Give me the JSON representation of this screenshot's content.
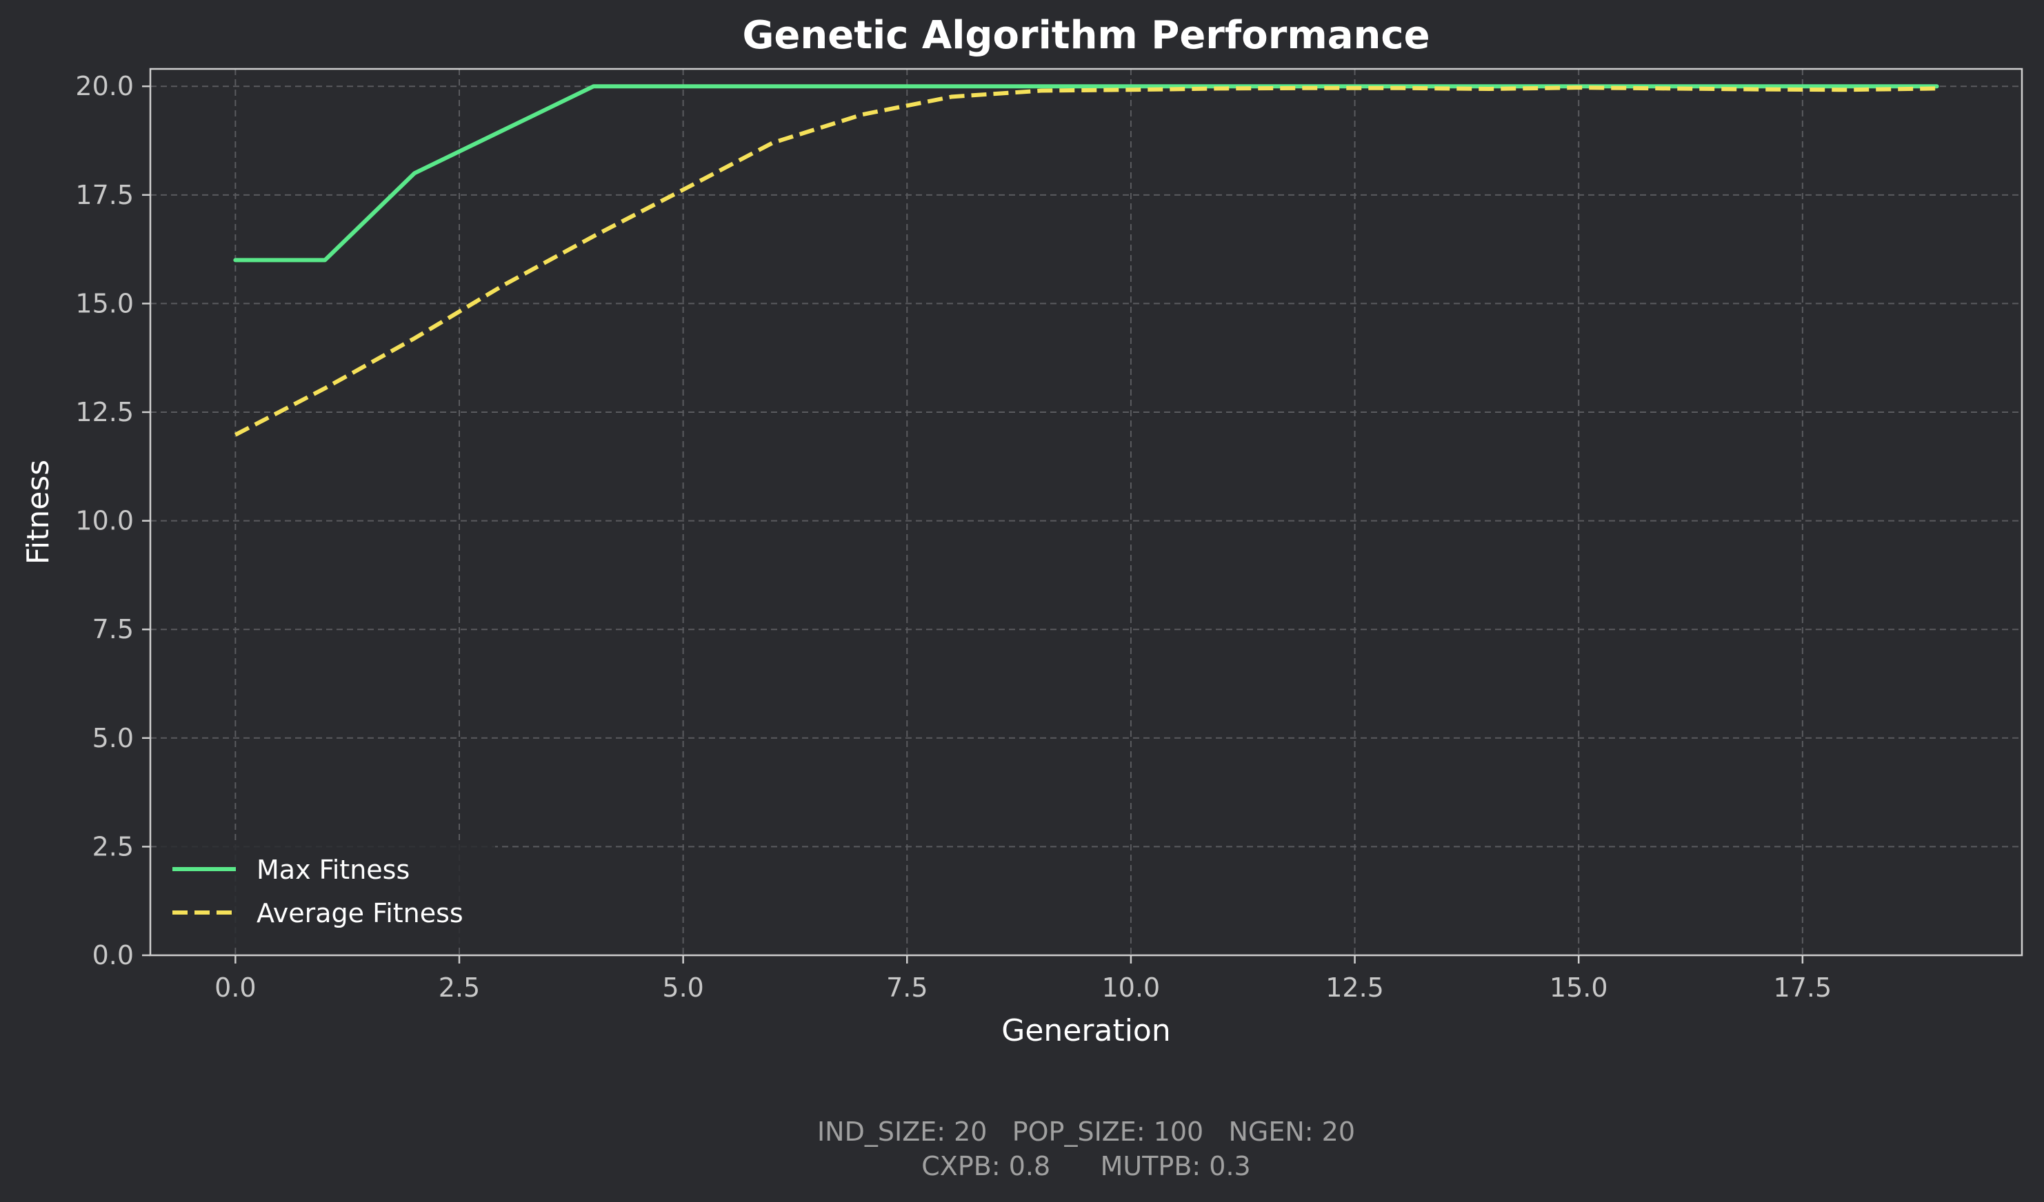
{
  "chart_data": {
    "type": "line",
    "title": "Genetic Algorithm Performance",
    "xlabel": "Generation",
    "ylabel": "Fitness",
    "xlim": [
      -0.95,
      19.95
    ],
    "ylim": [
      0,
      20.4
    ],
    "xticks": [
      0.0,
      2.5,
      5.0,
      7.5,
      10.0,
      12.5,
      15.0,
      17.5
    ],
    "xtick_labels": [
      "0.0",
      "2.5",
      "5.0",
      "7.5",
      "10.0",
      "12.5",
      "15.0",
      "17.5"
    ],
    "yticks": [
      0.0,
      2.5,
      5.0,
      7.5,
      10.0,
      12.5,
      15.0,
      17.5,
      20.0
    ],
    "ytick_labels": [
      "0.0",
      "2.5",
      "5.0",
      "7.5",
      "10.0",
      "12.5",
      "15.0",
      "17.5",
      "20.0"
    ],
    "grid": true,
    "legend_position": "lower-left",
    "x": [
      0,
      1,
      2,
      3,
      4,
      5,
      6,
      7,
      8,
      9,
      10,
      11,
      12,
      13,
      14,
      15,
      16,
      17,
      18,
      19
    ],
    "series": [
      {
        "name": "Max Fitness",
        "color": "#5ae88a",
        "style": "solid",
        "values": [
          16,
          16,
          18,
          19,
          20,
          20,
          20,
          20,
          20,
          20,
          20,
          20,
          20,
          20,
          20,
          20,
          20,
          20,
          20,
          20
        ]
      },
      {
        "name": "Average Fitness",
        "color": "#f5e15a",
        "style": "dashed",
        "values": [
          11.98,
          13.05,
          14.2,
          15.43,
          16.55,
          17.62,
          18.7,
          19.35,
          19.76,
          19.9,
          19.92,
          19.95,
          19.96,
          19.96,
          19.94,
          19.97,
          19.95,
          19.93,
          19.92,
          19.95
        ]
      }
    ],
    "colors": {
      "background": "#2a2b2f",
      "axes_frame": "#cfcfcf",
      "grid": "#5a5b5f"
    }
  },
  "footer": {
    "line1": "IND_SIZE: 20   POP_SIZE: 100   NGEN: 20",
    "line2": "CXPB: 0.8      MUTPB: 0.3"
  }
}
